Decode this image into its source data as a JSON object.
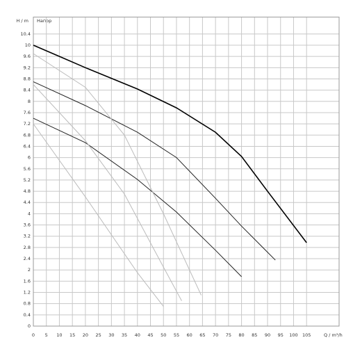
{
  "chart_data": {
    "type": "line",
    "title": "Напор",
    "x_label": "Q / m³/h",
    "y_label": "H / m",
    "xlim": [
      0,
      117.5
    ],
    "ylim": [
      0,
      11
    ],
    "xticks": [
      0,
      5,
      10,
      15,
      20,
      25,
      30,
      35,
      40,
      45,
      50,
      55,
      60,
      65,
      70,
      75,
      80,
      85,
      90,
      95,
      100,
      105
    ],
    "yticks": [
      0,
      0.4,
      0.8,
      1.2,
      1.6,
      2,
      2.4,
      2.8,
      3.2,
      3.6,
      4,
      4.4,
      4.8,
      5.2,
      5.6,
      6,
      6.4,
      6.8,
      7.2,
      7.6,
      8,
      8.4,
      8.8,
      9.2,
      9.6,
      10,
      10.4
    ],
    "grid": true,
    "series": [
      {
        "color": "#000000",
        "width": 1.6,
        "x": [
          0,
          10,
          20,
          40,
          55,
          70,
          80,
          90,
          105
        ],
        "values": [
          10,
          9.6,
          9.2,
          8.44,
          7.77,
          6.9,
          6.04,
          4.8,
          2.97
        ]
      },
      {
        "color": "#222222",
        "width": 1,
        "x": [
          0,
          20,
          40,
          55,
          70,
          80,
          93
        ],
        "values": [
          8.7,
          7.85,
          6.9,
          6.0,
          4.55,
          3.56,
          2.35
        ]
      },
      {
        "color": "#222222",
        "width": 1,
        "x": [
          0,
          20,
          40,
          55,
          70,
          80
        ],
        "values": [
          7.4,
          6.53,
          5.22,
          4.06,
          2.7,
          1.76
        ]
      },
      {
        "color": "#bbbbbb",
        "width": 1,
        "x": [
          0,
          20,
          40,
          50
        ],
        "values": [
          7.2,
          4.6,
          1.9,
          0.7
        ]
      },
      {
        "color": "#bbbbbb",
        "width": 1,
        "x": [
          0,
          20,
          35,
          50,
          57
        ],
        "values": [
          8.6,
          6.6,
          4.7,
          2.1,
          0.9
        ]
      },
      {
        "color": "#bbbbbb",
        "width": 1,
        "x": [
          0,
          20,
          35,
          50,
          64.5
        ],
        "values": [
          9.7,
          8.5,
          6.8,
          4,
          1.1
        ]
      }
    ]
  }
}
